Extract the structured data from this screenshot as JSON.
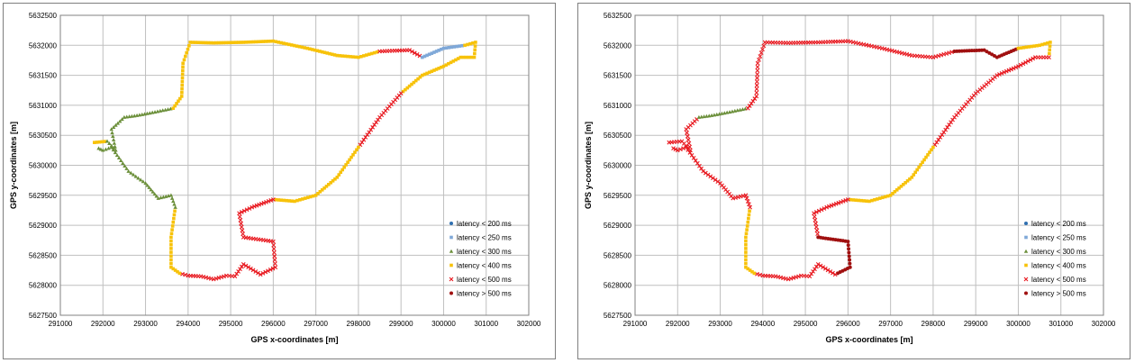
{
  "colors": {
    "lt200": "#2f6fb0",
    "lt250": "#7fa8d8",
    "lt300": "#6b8f3a",
    "lt400": "#f7c20a",
    "lt500": "#e8181f",
    "gt500": "#a01010",
    "grid": "#bfbfbf",
    "plot_border": "#808080"
  },
  "chart_data": [
    {
      "type": "scatter",
      "title": "",
      "xlabel": "GPS x-coordinates [m]",
      "ylabel": "GPS y-coordinates [m]",
      "xlim": [
        291000,
        302000
      ],
      "ylim": [
        5627500,
        5632500
      ],
      "xticks": [
        "291000",
        "292000",
        "293000",
        "294000",
        "295000",
        "296000",
        "297000",
        "298000",
        "299000",
        "300000",
        "301000",
        "302000"
      ],
      "yticks": [
        "5627500",
        "5628000",
        "5628500",
        "5629000",
        "5629500",
        "5630000",
        "5630500",
        "5631000",
        "5631500",
        "5632000",
        "5632500"
      ],
      "grid": true,
      "legend_position": "right",
      "legend": [
        "latency < 200 ms",
        "latency < 250 ms",
        "latency < 300 ms",
        "latency < 400 ms",
        "latency < 500 ms",
        "latency > 500 ms"
      ],
      "route": [
        [
          291800,
          5630380
        ],
        [
          292100,
          5630400
        ],
        [
          292300,
          5630250
        ],
        [
          292200,
          5630600
        ],
        [
          292500,
          5630800
        ],
        [
          292800,
          5630830
        ],
        [
          293100,
          5630870
        ],
        [
          293650,
          5630950
        ],
        [
          293850,
          5631150
        ],
        [
          293880,
          5631700
        ],
        [
          294050,
          5632050
        ],
        [
          294600,
          5632040
        ],
        [
          295300,
          5632050
        ],
        [
          296000,
          5632070
        ],
        [
          296800,
          5631950
        ],
        [
          297500,
          5631830
        ],
        [
          298000,
          5631800
        ],
        [
          298500,
          5631900
        ],
        [
          299200,
          5631920
        ],
        [
          299500,
          5631800
        ],
        [
          300000,
          5631950
        ],
        [
          300500,
          5632000
        ],
        [
          300750,
          5632050
        ],
        [
          300720,
          5631800
        ],
        [
          300400,
          5631800
        ],
        [
          300000,
          5631650
        ],
        [
          299500,
          5631500
        ],
        [
          299000,
          5631200
        ],
        [
          298500,
          5630800
        ],
        [
          298000,
          5630300
        ],
        [
          297500,
          5629800
        ],
        [
          297000,
          5629500
        ],
        [
          296500,
          5629400
        ],
        [
          296000,
          5629430
        ],
        [
          295500,
          5629300
        ],
        [
          295200,
          5629200
        ],
        [
          295300,
          5628800
        ],
        [
          296000,
          5628730
        ],
        [
          296050,
          5628300
        ],
        [
          295700,
          5628180
        ],
        [
          295300,
          5628350
        ],
        [
          295100,
          5628150
        ],
        [
          294900,
          5628160
        ],
        [
          294600,
          5628100
        ],
        [
          294300,
          5628150
        ],
        [
          294000,
          5628160
        ],
        [
          293800,
          5628200
        ],
        [
          293600,
          5628300
        ],
        [
          293600,
          5628800
        ],
        [
          293700,
          5629300
        ],
        [
          293600,
          5629500
        ],
        [
          293300,
          5629450
        ],
        [
          293000,
          5629700
        ],
        [
          292600,
          5629900
        ],
        [
          292200,
          5630300
        ],
        [
          292000,
          5630250
        ],
        [
          291850,
          5630300
        ]
      ],
      "point_spacing_m": 60,
      "point_marks": [
        {
          "route_segments": [
            [
              0,
              1
            ]
          ],
          "latency": "lt400"
        },
        {
          "route_segments": [
            [
              1,
              7
            ]
          ],
          "latency": "lt300"
        },
        {
          "route_segments": [
            [
              7,
              10
            ]
          ],
          "latency": "lt400"
        },
        {
          "route_segments": [
            [
              10,
              17
            ]
          ],
          "latency": "lt400"
        },
        {
          "route_segments": [
            [
              17,
              19
            ]
          ],
          "latency": "lt500"
        },
        {
          "route_segments": [
            [
              19,
              21
            ]
          ],
          "latency": "lt250"
        },
        {
          "route_segments": [
            [
              21,
              27
            ]
          ],
          "latency": "lt400"
        },
        {
          "route_segments": [
            [
              27,
              29
            ]
          ],
          "latency": "lt500"
        },
        {
          "route_segments": [
            [
              29,
              33
            ]
          ],
          "latency": "lt400"
        },
        {
          "route_segments": [
            [
              33,
              36
            ]
          ],
          "latency": "lt500"
        },
        {
          "route_segments": [
            [
              36,
              39
            ]
          ],
          "latency": "lt500"
        },
        {
          "route_segments": [
            [
              39,
              46
            ]
          ],
          "latency": "lt500"
        },
        {
          "route_segments": [
            [
              46,
              49
            ]
          ],
          "latency": "lt400"
        },
        {
          "route_segments": [
            [
              49,
              53
            ]
          ],
          "latency": "lt300"
        },
        {
          "route_segments": [
            [
              53,
              57
            ]
          ],
          "latency": "lt300"
        }
      ]
    },
    {
      "type": "scatter",
      "title": "",
      "xlabel": "GPS x-coordinates [m]",
      "ylabel": "GPS y-coordinates [m]",
      "xlim": [
        291000,
        302000
      ],
      "ylim": [
        5627500,
        5632500
      ],
      "xticks": [
        "291000",
        "292000",
        "293000",
        "294000",
        "295000",
        "296000",
        "297000",
        "298000",
        "299000",
        "300000",
        "301000",
        "302000"
      ],
      "yticks": [
        "5627500",
        "5628000",
        "5628500",
        "5629000",
        "5629500",
        "5630000",
        "5630500",
        "5631000",
        "5631500",
        "5632000",
        "5632500"
      ],
      "grid": true,
      "legend_position": "right",
      "legend": [
        "latency < 200 ms",
        "latency < 250 ms",
        "latency < 300 ms",
        "latency < 400 ms",
        "latency < 500 ms",
        "latency > 500 ms"
      ],
      "point_marks": [
        {
          "route_segments": [
            [
              0,
              4
            ]
          ],
          "latency": "lt500"
        },
        {
          "route_segments": [
            [
              4,
              7
            ]
          ],
          "latency": "lt300"
        },
        {
          "route_segments": [
            [
              7,
              10
            ]
          ],
          "latency": "lt500"
        },
        {
          "route_segments": [
            [
              10,
              17
            ]
          ],
          "latency": "lt500"
        },
        {
          "route_segments": [
            [
              17,
              20
            ]
          ],
          "latency": "gt500"
        },
        {
          "route_segments": [
            [
              20,
              23
            ]
          ],
          "latency": "lt400"
        },
        {
          "route_segments": [
            [
              23,
              27
            ]
          ],
          "latency": "lt500"
        },
        {
          "route_segments": [
            [
              27,
              29
            ]
          ],
          "latency": "lt500"
        },
        {
          "route_segments": [
            [
              29,
              33
            ]
          ],
          "latency": "lt400"
        },
        {
          "route_segments": [
            [
              33,
              36
            ]
          ],
          "latency": "lt500"
        },
        {
          "route_segments": [
            [
              36,
              39
            ]
          ],
          "latency": "gt500"
        },
        {
          "route_segments": [
            [
              39,
              46
            ]
          ],
          "latency": "lt500"
        },
        {
          "route_segments": [
            [
              46,
              49
            ]
          ],
          "latency": "lt400"
        },
        {
          "route_segments": [
            [
              49,
              53
            ]
          ],
          "latency": "lt500"
        },
        {
          "route_segments": [
            [
              53,
              57
            ]
          ],
          "latency": "lt500"
        }
      ]
    }
  ]
}
